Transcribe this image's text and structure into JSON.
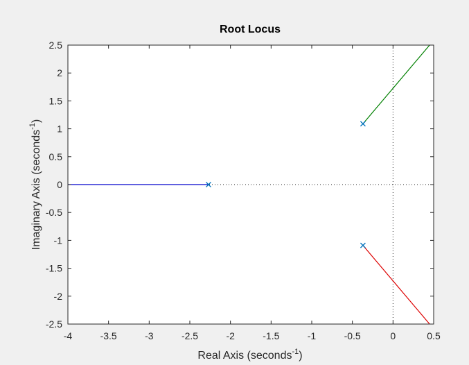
{
  "chart_data": {
    "type": "line",
    "title": "Root Locus",
    "xlabel": {
      "text": "Real Axis (seconds",
      "sup": "-1",
      "close": ")"
    },
    "ylabel": {
      "text": "Imaginary Axis (seconds",
      "sup": "-1",
      "close": ")"
    },
    "xlim": [
      -4,
      0.5
    ],
    "ylim": [
      -2.5,
      2.5
    ],
    "xticks": [
      -4,
      -3.5,
      -3,
      -2.5,
      -2,
      -1.5,
      -1,
      -0.5,
      0,
      0.5
    ],
    "xtick_labels": [
      "-4",
      "-3.5",
      "-3",
      "-2.5",
      "-2",
      "-1.5",
      "-1",
      "-0.5",
      "0",
      "0.5"
    ],
    "yticks": [
      -2.5,
      -2,
      -1.5,
      -1,
      -0.5,
      0,
      0.5,
      1,
      1.5,
      2,
      2.5
    ],
    "ytick_labels": [
      "-2.5",
      "-2",
      "-1.5",
      "-1",
      "-0.5",
      "0",
      "0.5",
      "1",
      "1.5",
      "2",
      "2.5"
    ],
    "grid": false,
    "reference_lines": [
      {
        "orientation": "vertical",
        "value": 0,
        "style": "dotted"
      },
      {
        "orientation": "horizontal",
        "value": 0,
        "style": "dotted"
      }
    ],
    "series": [
      {
        "color": "#0000cc",
        "points": [
          [
            -2.27,
            0
          ],
          [
            -4,
            0
          ]
        ]
      },
      {
        "color": "#008000",
        "points": [
          [
            -0.37,
            1.09
          ],
          [
            0.45,
            2.5
          ]
        ]
      },
      {
        "color": "#dd0000",
        "points": [
          [
            -0.37,
            -1.09
          ],
          [
            0.45,
            -2.5
          ]
        ]
      }
    ],
    "poles": [
      [
        -2.27,
        0
      ],
      [
        -0.37,
        1.09
      ],
      [
        -0.37,
        -1.09
      ]
    ],
    "pole_color": "#0072bd",
    "pole_marker": "x"
  }
}
